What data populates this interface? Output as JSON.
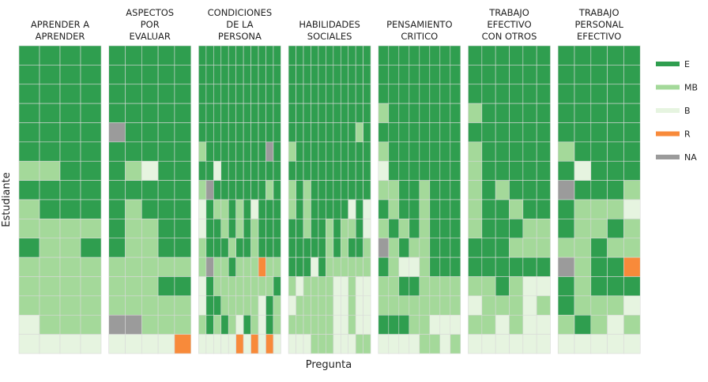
{
  "chart_data": {
    "type": "heatmap",
    "x_label": "Pregunta",
    "y_label": "Estudiante",
    "levels": [
      {
        "name": "E",
        "color": "#2f9e4f"
      },
      {
        "name": "MB",
        "color": "#a4d99a"
      },
      {
        "name": "B",
        "color": "#e6f4e0"
      },
      {
        "name": "R",
        "color": "#f88a3a"
      },
      {
        "name": "NA",
        "color": "#9b9b9b"
      }
    ],
    "panels": [
      {
        "title": [
          "APRENDER A",
          "APRENDER"
        ],
        "cells": [
          [
            "E",
            "E",
            "E",
            "E"
          ],
          [
            "E",
            "E",
            "E",
            "E"
          ],
          [
            "E",
            "E",
            "E",
            "E"
          ],
          [
            "E",
            "E",
            "E",
            "E"
          ],
          [
            "E",
            "E",
            "E",
            "E"
          ],
          [
            "E",
            "E",
            "E",
            "E"
          ],
          [
            "MB",
            "MB",
            "E",
            "E"
          ],
          [
            "E",
            "E",
            "E",
            "E"
          ],
          [
            "MB",
            "E",
            "E",
            "E"
          ],
          [
            "MB",
            "MB",
            "MB",
            "MB"
          ],
          [
            "E",
            "MB",
            "MB",
            "E"
          ],
          [
            "MB",
            "MB",
            "MB",
            "MB"
          ],
          [
            "MB",
            "MB",
            "MB",
            "MB"
          ],
          [
            "MB",
            "MB",
            "MB",
            "MB"
          ],
          [
            "B",
            "MB",
            "MB",
            "MB"
          ],
          [
            "B",
            "B",
            "B",
            "B"
          ]
        ]
      },
      {
        "title": [
          "ASPECTOS",
          "POR",
          "EVALUAR"
        ],
        "cells": [
          [
            "E",
            "E",
            "E",
            "E",
            "E"
          ],
          [
            "E",
            "E",
            "E",
            "E",
            "E"
          ],
          [
            "E",
            "E",
            "E",
            "E",
            "E"
          ],
          [
            "E",
            "E",
            "E",
            "E",
            "E"
          ],
          [
            "NA",
            "E",
            "E",
            "E",
            "E"
          ],
          [
            "E",
            "E",
            "E",
            "E",
            "E"
          ],
          [
            "E",
            "MB",
            "B",
            "E",
            "E"
          ],
          [
            "E",
            "E",
            "E",
            "E",
            "E"
          ],
          [
            "E",
            "MB",
            "E",
            "E",
            "E"
          ],
          [
            "E",
            "MB",
            "MB",
            "E",
            "E"
          ],
          [
            "E",
            "MB",
            "MB",
            "E",
            "E"
          ],
          [
            "MB",
            "MB",
            "MB",
            "MB",
            "MB"
          ],
          [
            "MB",
            "MB",
            "MB",
            "E",
            "E"
          ],
          [
            "MB",
            "MB",
            "MB",
            "MB",
            "MB"
          ],
          [
            "NA",
            "NA",
            "MB",
            "MB",
            "MB"
          ],
          [
            "B",
            "B",
            "B",
            "B",
            "R"
          ]
        ]
      },
      {
        "title": [
          "CONDICIONES",
          "DE LA",
          "PERSONA"
        ],
        "cells": [
          [
            "E",
            "E",
            "E",
            "E",
            "E",
            "E",
            "E",
            "E",
            "E",
            "E",
            "E"
          ],
          [
            "E",
            "E",
            "E",
            "E",
            "E",
            "E",
            "E",
            "E",
            "E",
            "E",
            "E"
          ],
          [
            "E",
            "E",
            "E",
            "E",
            "E",
            "E",
            "E",
            "E",
            "E",
            "E",
            "E"
          ],
          [
            "E",
            "E",
            "E",
            "E",
            "E",
            "E",
            "E",
            "E",
            "E",
            "E",
            "E"
          ],
          [
            "E",
            "E",
            "E",
            "E",
            "E",
            "E",
            "E",
            "E",
            "E",
            "E",
            "E"
          ],
          [
            "MB",
            "E",
            "E",
            "E",
            "E",
            "E",
            "E",
            "E",
            "E",
            "NA",
            "E"
          ],
          [
            "E",
            "E",
            "B",
            "E",
            "E",
            "E",
            "E",
            "E",
            "E",
            "E",
            "E"
          ],
          [
            "MB",
            "NA",
            "E",
            "E",
            "E",
            "E",
            "E",
            "E",
            "E",
            "MB",
            "E"
          ],
          [
            "B",
            "E",
            "MB",
            "MB",
            "E",
            "MB",
            "E",
            "B",
            "E",
            "E",
            "E"
          ],
          [
            "B",
            "E",
            "E",
            "MB",
            "E",
            "MB",
            "E",
            "MB",
            "E",
            "E",
            "E"
          ],
          [
            "MB",
            "E",
            "E",
            "E",
            "MB",
            "E",
            "E",
            "MB",
            "E",
            "E",
            "E"
          ],
          [
            "MB",
            "NA",
            "MB",
            "MB",
            "E",
            "MB",
            "MB",
            "MB",
            "R",
            "MB",
            "MB"
          ],
          [
            "B",
            "E",
            "MB",
            "MB",
            "MB",
            "MB",
            "MB",
            "MB",
            "MB",
            "MB",
            "E"
          ],
          [
            "B",
            "E",
            "E",
            "MB",
            "MB",
            "MB",
            "MB",
            "MB",
            "B",
            "E",
            "MB"
          ],
          [
            "MB",
            "E",
            "MB",
            "E",
            "MB",
            "B",
            "E",
            "MB",
            "B",
            "E",
            "MB"
          ],
          [
            "B",
            "B",
            "B",
            "B",
            "B",
            "R",
            "B",
            "R",
            "B",
            "R",
            "B"
          ]
        ]
      },
      {
        "title": [
          "HABILIDADES",
          "SOCIALES"
        ],
        "cells": [
          [
            "E",
            "E",
            "E",
            "E",
            "E",
            "E",
            "E",
            "E",
            "E",
            "E",
            "E"
          ],
          [
            "E",
            "E",
            "E",
            "E",
            "E",
            "E",
            "E",
            "E",
            "E",
            "E",
            "E"
          ],
          [
            "E",
            "E",
            "E",
            "E",
            "E",
            "E",
            "E",
            "E",
            "E",
            "E",
            "E"
          ],
          [
            "E",
            "E",
            "E",
            "E",
            "E",
            "E",
            "E",
            "E",
            "E",
            "E",
            "E"
          ],
          [
            "E",
            "E",
            "E",
            "E",
            "E",
            "E",
            "E",
            "E",
            "E",
            "MB",
            "E"
          ],
          [
            "MB",
            "E",
            "E",
            "E",
            "E",
            "E",
            "E",
            "E",
            "E",
            "E",
            "E"
          ],
          [
            "E",
            "E",
            "E",
            "E",
            "E",
            "E",
            "E",
            "E",
            "E",
            "E",
            "E"
          ],
          [
            "MB",
            "E",
            "MB",
            "E",
            "E",
            "E",
            "E",
            "E",
            "E",
            "E",
            "E"
          ],
          [
            "MB",
            "E",
            "MB",
            "E",
            "E",
            "E",
            "E",
            "E",
            "B",
            "E",
            "B"
          ],
          [
            "E",
            "E",
            "MB",
            "E",
            "E",
            "MB",
            "E",
            "MB",
            "MB",
            "E",
            "B"
          ],
          [
            "E",
            "E",
            "E",
            "E",
            "E",
            "MB",
            "E",
            "MB",
            "E",
            "E",
            "MB"
          ],
          [
            "E",
            "E",
            "E",
            "B",
            "E",
            "MB",
            "MB",
            "MB",
            "MB",
            "MB",
            "MB"
          ],
          [
            "MB",
            "B",
            "MB",
            "MB",
            "MB",
            "MB",
            "B",
            "B",
            "MB",
            "B",
            "B"
          ],
          [
            "B",
            "MB",
            "MB",
            "MB",
            "MB",
            "MB",
            "B",
            "B",
            "MB",
            "B",
            "B"
          ],
          [
            "MB",
            "MB",
            "MB",
            "MB",
            "MB",
            "MB",
            "B",
            "B",
            "MB",
            "B",
            "B"
          ],
          [
            "B",
            "B",
            "B",
            "MB",
            "MB",
            "MB",
            "B",
            "B",
            "B",
            "MB",
            "MB"
          ]
        ]
      },
      {
        "title": [
          "PENSAMIENTO",
          "CRITICO"
        ],
        "cells": [
          [
            "E",
            "E",
            "E",
            "E",
            "E",
            "E",
            "E",
            "E"
          ],
          [
            "E",
            "E",
            "E",
            "E",
            "E",
            "E",
            "E",
            "E"
          ],
          [
            "E",
            "E",
            "E",
            "E",
            "E",
            "E",
            "E",
            "E"
          ],
          [
            "MB",
            "E",
            "E",
            "E",
            "E",
            "E",
            "E",
            "E"
          ],
          [
            "E",
            "E",
            "E",
            "E",
            "E",
            "E",
            "E",
            "E"
          ],
          [
            "MB",
            "E",
            "E",
            "E",
            "E",
            "E",
            "E",
            "E"
          ],
          [
            "B",
            "E",
            "E",
            "E",
            "E",
            "E",
            "E",
            "E"
          ],
          [
            "MB",
            "MB",
            "E",
            "E",
            "MB",
            "E",
            "E",
            "E"
          ],
          [
            "E",
            "MB",
            "E",
            "E",
            "MB",
            "E",
            "E",
            "E"
          ],
          [
            "MB",
            "E",
            "MB",
            "E",
            "MB",
            "E",
            "E",
            "E"
          ],
          [
            "NA",
            "MB",
            "E",
            "MB",
            "MB",
            "E",
            "E",
            "E"
          ],
          [
            "E",
            "MB",
            "B",
            "B",
            "MB",
            "E",
            "E",
            "E"
          ],
          [
            "MB",
            "MB",
            "E",
            "E",
            "MB",
            "MB",
            "MB",
            "MB"
          ],
          [
            "MB",
            "MB",
            "MB",
            "MB",
            "MB",
            "MB",
            "MB",
            "MB"
          ],
          [
            "E",
            "E",
            "E",
            "MB",
            "MB",
            "B",
            "B",
            "B"
          ],
          [
            "B",
            "B",
            "B",
            "B",
            "MB",
            "MB",
            "B",
            "MB"
          ]
        ]
      },
      {
        "title": [
          "TRABAJO",
          "EFECTIVO",
          "CON OTROS"
        ],
        "cells": [
          [
            "E",
            "E",
            "E",
            "E",
            "E",
            "E"
          ],
          [
            "E",
            "E",
            "E",
            "E",
            "E",
            "E"
          ],
          [
            "E",
            "E",
            "E",
            "E",
            "E",
            "E"
          ],
          [
            "MB",
            "E",
            "E",
            "E",
            "E",
            "E"
          ],
          [
            "E",
            "E",
            "E",
            "E",
            "E",
            "E"
          ],
          [
            "MB",
            "E",
            "E",
            "E",
            "E",
            "E"
          ],
          [
            "MB",
            "E",
            "E",
            "E",
            "E",
            "E"
          ],
          [
            "MB",
            "E",
            "MB",
            "E",
            "E",
            "E"
          ],
          [
            "MB",
            "E",
            "E",
            "MB",
            "E",
            "E"
          ],
          [
            "MB",
            "E",
            "E",
            "E",
            "MB",
            "MB"
          ],
          [
            "E",
            "E",
            "E",
            "MB",
            "MB",
            "MB"
          ],
          [
            "E",
            "E",
            "E",
            "E",
            "E",
            "E"
          ],
          [
            "MB",
            "MB",
            "E",
            "MB",
            "B",
            "B"
          ],
          [
            "B",
            "MB",
            "MB",
            "MB",
            "B",
            "MB"
          ],
          [
            "MB",
            "MB",
            "B",
            "MB",
            "B",
            "B"
          ],
          [
            "B",
            "B",
            "B",
            "B",
            "B",
            "B"
          ]
        ]
      },
      {
        "title": [
          "TRABAJO",
          "PERSONAL",
          "EFECTIVO"
        ],
        "cells": [
          [
            "E",
            "E",
            "E",
            "E",
            "E"
          ],
          [
            "E",
            "E",
            "E",
            "E",
            "E"
          ],
          [
            "E",
            "E",
            "E",
            "E",
            "E"
          ],
          [
            "E",
            "E",
            "E",
            "E",
            "E"
          ],
          [
            "E",
            "E",
            "E",
            "E",
            "E"
          ],
          [
            "MB",
            "E",
            "E",
            "E",
            "E"
          ],
          [
            "E",
            "B",
            "E",
            "E",
            "E"
          ],
          [
            "NA",
            "E",
            "E",
            "E",
            "MB"
          ],
          [
            "E",
            "MB",
            "MB",
            "MB",
            "B"
          ],
          [
            "E",
            "MB",
            "MB",
            "E",
            "MB"
          ],
          [
            "MB",
            "MB",
            "E",
            "MB",
            "MB"
          ],
          [
            "NA",
            "MB",
            "E",
            "E",
            "R"
          ],
          [
            "E",
            "MB",
            "E",
            "E",
            "E"
          ],
          [
            "E",
            "MB",
            "MB",
            "MB",
            "B"
          ],
          [
            "MB",
            "E",
            "MB",
            "B",
            "MB"
          ],
          [
            "B",
            "B",
            "B",
            "B",
            "B"
          ]
        ]
      }
    ]
  }
}
